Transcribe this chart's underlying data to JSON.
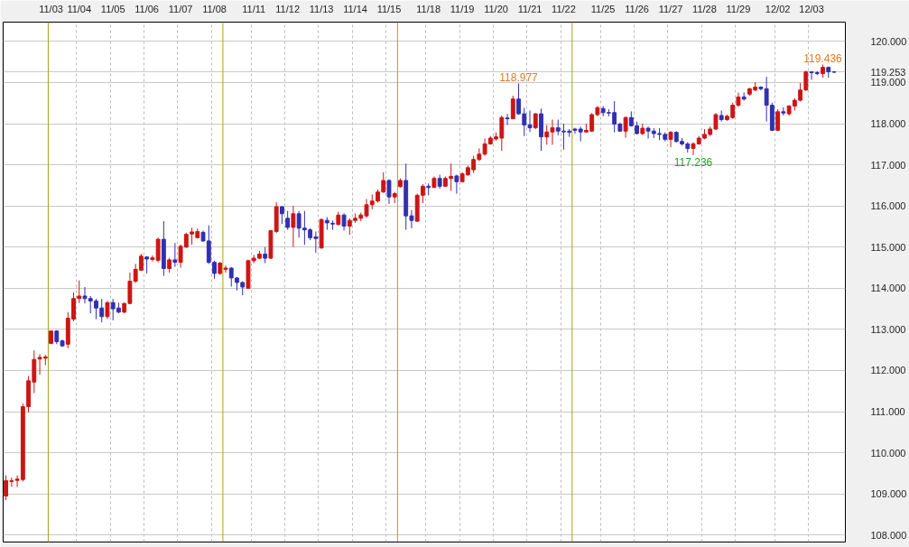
{
  "chart_data": {
    "type": "candlestick",
    "categories": [
      null,
      null,
      null,
      null,
      null,
      null,
      null,
      null,
      "11/03",
      null,
      null,
      null,
      null,
      "11/04",
      null,
      null,
      null,
      null,
      null,
      "11/05",
      null,
      null,
      null,
      null,
      null,
      "11/06",
      null,
      null,
      null,
      null,
      null,
      "11/07",
      null,
      null,
      null,
      null,
      null,
      "11/08",
      null,
      null,
      null,
      null,
      null,
      null,
      "11/11",
      null,
      null,
      null,
      null,
      null,
      "11/12",
      null,
      null,
      null,
      null,
      null,
      "11/13",
      null,
      null,
      null,
      null,
      null,
      "11/14",
      null,
      null,
      null,
      null,
      null,
      "11/15",
      null,
      null,
      null,
      null,
      null,
      null,
      "11/18",
      null,
      null,
      null,
      null,
      null,
      "11/19",
      null,
      null,
      null,
      null,
      null,
      "11/20",
      null,
      null,
      null,
      null,
      null,
      "11/21",
      null,
      null,
      null,
      null,
      null,
      "11/22",
      null,
      null,
      null,
      null,
      null,
      null,
      "11/25",
      null,
      null,
      null,
      null,
      null,
      "11/26",
      null,
      null,
      null,
      null,
      null,
      "11/27",
      null,
      null,
      null,
      null,
      null,
      "11/28",
      null,
      null,
      null,
      null,
      null,
      "11/29",
      null,
      null,
      null,
      null,
      null,
      null,
      "12/02",
      null,
      null,
      null,
      null,
      null,
      "12/03",
      null,
      null,
      null,
      null
    ],
    "ohlc": [
      [
        108.95,
        109.45,
        108.85,
        109.32
      ],
      [
        109.3,
        109.4,
        109.17,
        109.32
      ],
      [
        109.33,
        109.45,
        109.17,
        109.36
      ],
      [
        109.35,
        111.2,
        109.3,
        111.12
      ],
      [
        111.12,
        111.87,
        110.98,
        111.75
      ],
      [
        111.72,
        112.49,
        111.45,
        112.27
      ],
      [
        112.28,
        112.4,
        111.9,
        112.32
      ],
      [
        112.3,
        112.38,
        112.13,
        112.33
      ],
      [
        112.66,
        112.97,
        112.64,
        112.96
      ],
      [
        112.96,
        112.98,
        112.64,
        112.7
      ],
      [
        112.72,
        112.75,
        112.58,
        112.6
      ],
      [
        112.64,
        113.42,
        112.54,
        113.27
      ],
      [
        113.25,
        113.9,
        113.2,
        113.75
      ],
      [
        113.75,
        114.19,
        113.64,
        113.81
      ],
      [
        113.81,
        114.03,
        113.63,
        113.75
      ],
      [
        113.75,
        113.81,
        113.39,
        113.69
      ],
      [
        113.69,
        113.74,
        113.25,
        113.52
      ],
      [
        113.52,
        113.74,
        113.17,
        113.31
      ],
      [
        113.31,
        113.69,
        113.25,
        113.65
      ],
      [
        113.65,
        113.74,
        113.22,
        113.5
      ],
      [
        113.52,
        113.65,
        113.39,
        113.42
      ],
      [
        113.42,
        113.65,
        113.39,
        113.63
      ],
      [
        113.63,
        114.38,
        113.61,
        114.17
      ],
      [
        114.17,
        114.59,
        114.13,
        114.46
      ],
      [
        114.44,
        114.84,
        114.42,
        114.78
      ],
      [
        114.76,
        114.78,
        114.36,
        114.71
      ],
      [
        114.7,
        114.8,
        114.65,
        114.74
      ],
      [
        114.68,
        115.23,
        114.63,
        115.19
      ],
      [
        115.19,
        115.63,
        114.3,
        114.48
      ],
      [
        114.48,
        114.74,
        114.38,
        114.69
      ],
      [
        114.69,
        115.1,
        114.52,
        114.63
      ],
      [
        114.63,
        115.06,
        114.5,
        115.02
      ],
      [
        115.0,
        115.35,
        114.98,
        115.31
      ],
      [
        115.32,
        115.47,
        115.06,
        115.37
      ],
      [
        115.23,
        115.45,
        115.21,
        115.38
      ],
      [
        115.36,
        115.4,
        115.13,
        115.15
      ],
      [
        115.15,
        115.53,
        114.59,
        114.63
      ],
      [
        114.63,
        114.67,
        114.23,
        114.36
      ],
      [
        114.36,
        114.64,
        114.33,
        114.61
      ],
      [
        114.46,
        114.55,
        114.38,
        114.49
      ],
      [
        114.49,
        114.51,
        114.04,
        114.25
      ],
      [
        114.25,
        114.27,
        113.95,
        114.14
      ],
      [
        114.14,
        114.17,
        113.83,
        114.03
      ],
      [
        114.0,
        114.69,
        113.98,
        114.67
      ],
      [
        114.67,
        114.81,
        114.61,
        114.73
      ],
      [
        114.73,
        114.91,
        114.71,
        114.83
      ],
      [
        114.83,
        115.0,
        114.61,
        114.73
      ],
      [
        114.73,
        115.42,
        114.71,
        115.4
      ],
      [
        115.38,
        116.09,
        115.34,
        115.98
      ],
      [
        115.98,
        116.0,
        115.56,
        115.81
      ],
      [
        115.7,
        115.88,
        115.42,
        115.48
      ],
      [
        115.48,
        116.0,
        115.0,
        115.81
      ],
      [
        115.81,
        115.88,
        115.23,
        115.46
      ],
      [
        115.46,
        115.88,
        115.06,
        115.42
      ],
      [
        115.42,
        115.46,
        115.17,
        115.23
      ],
      [
        115.25,
        115.38,
        114.86,
        115.21
      ],
      [
        114.98,
        115.7,
        114.96,
        115.67
      ],
      [
        115.65,
        115.73,
        115.42,
        115.59
      ],
      [
        115.58,
        115.65,
        115.42,
        115.56
      ],
      [
        115.55,
        115.86,
        115.53,
        115.78
      ],
      [
        115.78,
        115.82,
        115.4,
        115.51
      ],
      [
        115.51,
        115.7,
        115.3,
        115.65
      ],
      [
        115.65,
        115.82,
        115.59,
        115.7
      ],
      [
        115.7,
        115.84,
        115.63,
        115.78
      ],
      [
        115.76,
        116.17,
        115.71,
        116.03
      ],
      [
        116.03,
        116.28,
        115.92,
        116.12
      ],
      [
        116.12,
        116.4,
        116.09,
        116.34
      ],
      [
        116.34,
        116.82,
        116.32,
        116.62
      ],
      [
        116.62,
        116.65,
        116.05,
        116.22
      ],
      [
        116.22,
        116.34,
        116.07,
        116.3
      ],
      [
        116.47,
        116.67,
        116.45,
        116.62
      ],
      [
        116.62,
        117.03,
        115.42,
        115.76
      ],
      [
        115.76,
        115.9,
        115.46,
        115.65
      ],
      [
        115.63,
        116.3,
        115.61,
        116.26
      ],
      [
        116.26,
        116.53,
        116.07,
        116.48
      ],
      [
        116.48,
        116.55,
        116.26,
        116.45
      ],
      [
        116.45,
        116.72,
        116.45,
        116.67
      ],
      [
        116.67,
        116.76,
        116.42,
        116.48
      ],
      [
        116.48,
        116.72,
        116.47,
        116.67
      ],
      [
        116.67,
        117.03,
        116.37,
        116.72
      ],
      [
        116.73,
        116.76,
        116.3,
        116.59
      ],
      [
        116.59,
        116.82,
        116.57,
        116.78
      ],
      [
        116.76,
        116.98,
        116.73,
        116.93
      ],
      [
        116.88,
        117.22,
        116.8,
        117.13
      ],
      [
        117.13,
        117.4,
        117.09,
        117.26
      ],
      [
        117.26,
        117.64,
        117.22,
        117.51
      ],
      [
        117.51,
        117.7,
        117.49,
        117.65
      ],
      [
        117.63,
        117.79,
        117.59,
        117.68
      ],
      [
        117.65,
        118.2,
        117.34,
        118.15
      ],
      [
        118.14,
        118.24,
        117.97,
        118.12
      ],
      [
        118.12,
        118.68,
        118.12,
        118.6
      ],
      [
        118.6,
        118.977,
        118.22,
        118.24
      ],
      [
        118.24,
        118.39,
        117.7,
        117.97
      ],
      [
        117.97,
        118.32,
        117.8,
        117.9
      ],
      [
        117.9,
        118.26,
        117.87,
        118.24
      ],
      [
        118.24,
        118.37,
        117.34,
        117.68
      ],
      [
        117.68,
        117.97,
        117.49,
        117.8
      ],
      [
        117.8,
        118.1,
        117.49,
        117.9
      ],
      [
        117.9,
        118.1,
        117.72,
        117.82
      ],
      [
        117.82,
        118.0,
        117.37,
        117.8
      ],
      [
        117.82,
        117.87,
        117.68,
        117.79
      ],
      [
        117.87,
        117.9,
        117.76,
        117.84
      ],
      [
        117.87,
        117.93,
        117.57,
        117.8
      ],
      [
        117.8,
        118.0,
        117.78,
        117.84
      ],
      [
        117.82,
        118.26,
        117.8,
        118.22
      ],
      [
        118.22,
        118.43,
        118.18,
        118.39
      ],
      [
        118.37,
        118.43,
        118.18,
        118.27
      ],
      [
        118.27,
        118.35,
        118.18,
        118.26
      ],
      [
        118.27,
        118.55,
        117.79,
        117.99
      ],
      [
        117.99,
        118.03,
        117.8,
        117.82
      ],
      [
        117.82,
        118.18,
        117.66,
        118.15
      ],
      [
        118.15,
        118.3,
        117.93,
        117.95
      ],
      [
        117.95,
        118.05,
        117.74,
        117.76
      ],
      [
        117.76,
        118.0,
        117.72,
        117.89
      ],
      [
        117.89,
        117.93,
        117.64,
        117.82
      ],
      [
        117.82,
        117.89,
        117.65,
        117.76
      ],
      [
        117.76,
        117.89,
        117.6,
        117.74
      ],
      [
        117.74,
        117.79,
        117.57,
        117.62
      ],
      [
        117.62,
        117.82,
        117.43,
        117.79
      ],
      [
        117.79,
        117.82,
        117.54,
        117.57
      ],
      [
        117.57,
        117.65,
        117.47,
        117.51
      ],
      [
        117.51,
        117.55,
        117.3,
        117.4
      ],
      [
        117.4,
        117.55,
        117.236,
        117.51
      ],
      [
        117.51,
        117.7,
        117.49,
        117.65
      ],
      [
        117.65,
        117.87,
        117.62,
        117.74
      ],
      [
        117.74,
        117.93,
        117.7,
        117.87
      ],
      [
        117.87,
        118.26,
        117.85,
        118.22
      ],
      [
        118.2,
        118.32,
        118.05,
        118.1
      ],
      [
        118.1,
        118.22,
        118.07,
        118.18
      ],
      [
        118.15,
        118.51,
        118.12,
        118.45
      ],
      [
        118.45,
        118.76,
        118.41,
        118.65
      ],
      [
        118.65,
        118.76,
        118.56,
        118.6
      ],
      [
        118.72,
        118.87,
        118.68,
        118.85
      ],
      [
        118.82,
        119.01,
        118.79,
        118.89
      ],
      [
        118.89,
        118.91,
        118.81,
        118.85
      ],
      [
        118.85,
        119.14,
        118.05,
        118.45
      ],
      [
        118.45,
        118.51,
        117.82,
        117.84
      ],
      [
        117.84,
        118.35,
        117.82,
        118.29
      ],
      [
        118.29,
        118.4,
        118.2,
        118.26
      ],
      [
        118.24,
        118.45,
        118.2,
        118.43
      ],
      [
        118.43,
        118.62,
        118.32,
        118.57
      ],
      [
        118.57,
        118.99,
        118.54,
        118.82
      ],
      [
        118.82,
        119.29,
        118.8,
        119.26
      ],
      [
        119.26,
        119.28,
        119.07,
        119.24
      ],
      [
        119.24,
        119.28,
        119.18,
        119.22
      ],
      [
        119.22,
        119.436,
        119.12,
        119.37
      ],
      [
        119.37,
        119.39,
        119.12,
        119.26
      ],
      [
        119.26,
        119.28,
        119.24,
        119.253
      ]
    ],
    "colors": [
      "#cc1515",
      "#cc1515",
      "#cc1515",
      "#cc1515",
      "#cc1515",
      "#cc1515",
      "#cc1515",
      "#cc1515",
      "#cc1515",
      "#3030b0",
      "#3030b0",
      "#cc1515",
      "#cc1515",
      "#cc1515",
      "#3030b0",
      "#3030b0",
      "#3030b0",
      "#3030b0",
      "#cc1515",
      "#3030b0",
      "#3030b0",
      "#cc1515",
      "#cc1515",
      "#cc1515",
      "#cc1515",
      "#3030b0",
      "#cc1515",
      "#cc1515",
      "#3030b0",
      "#cc1515",
      "#3030b0",
      "#cc1515",
      "#cc1515",
      "#cc1515",
      "#cc1515",
      "#3030b0",
      "#3030b0",
      "#3030b0",
      "#cc1515",
      "#cc1515",
      "#3030b0",
      "#3030b0",
      "#3030b0",
      "#cc1515",
      "#cc1515",
      "#cc1515",
      "#3030b0",
      "#cc1515",
      "#cc1515",
      "#3030b0",
      "#3030b0",
      "#cc1515",
      "#3030b0",
      "#3030b0",
      "#3030b0",
      "#3030b0",
      "#cc1515",
      "#3030b0",
      "#3030b0",
      "#cc1515",
      "#3030b0",
      "#cc1515",
      "#cc1515",
      "#cc1515",
      "#cc1515",
      "#cc1515",
      "#cc1515",
      "#cc1515",
      "#3030b0",
      "#cc1515",
      "#cc1515",
      "#3030b0",
      "#3030b0",
      "#cc1515",
      "#cc1515",
      "#3030b0",
      "#cc1515",
      "#3030b0",
      "#cc1515",
      "#cc1515",
      "#3030b0",
      "#cc1515",
      "#cc1515",
      "#cc1515",
      "#cc1515",
      "#cc1515",
      "#cc1515",
      "#cc1515",
      "#cc1515",
      "#3030b0",
      "#cc1515",
      "#3030b0",
      "#3030b0",
      "#3030b0",
      "#cc1515",
      "#3030b0",
      "#cc1515",
      "#cc1515",
      "#3030b0",
      "#3030b0",
      "#3030b0",
      "#3030b0",
      "#3030b0",
      "#cc1515",
      "#cc1515",
      "#cc1515",
      "#3030b0",
      "#3030b0",
      "#3030b0",
      "#3030b0",
      "#cc1515",
      "#3030b0",
      "#3030b0",
      "#cc1515",
      "#3030b0",
      "#3030b0",
      "#3030b0",
      "#3030b0",
      "#cc1515",
      "#3030b0",
      "#3030b0",
      "#3030b0",
      "#cc1515",
      "#cc1515",
      "#cc1515",
      "#cc1515",
      "#cc1515",
      "#3030b0",
      "#cc1515",
      "#cc1515",
      "#cc1515",
      "#3030b0",
      "#cc1515",
      "#cc1515",
      "#3030b0",
      "#3030b0",
      "#3030b0",
      "#cc1515",
      "#3030b0",
      "#cc1515",
      "#cc1515",
      "#cc1515",
      "#cc1515",
      "#3030b0",
      "#3030b0",
      "#cc1515",
      "#3030b0",
      "#3030b0"
    ],
    "ylim": [
      107.83,
      120.47
    ],
    "yticks": [
      {
        "value": 108,
        "label": "108.000"
      },
      {
        "value": 109,
        "label": "109.000"
      },
      {
        "value": 110,
        "label": "110.000"
      },
      {
        "value": 111,
        "label": "111.000"
      },
      {
        "value": 112,
        "label": "112.000"
      },
      {
        "value": 113,
        "label": "113.000"
      },
      {
        "value": 114,
        "label": "114.000"
      },
      {
        "value": 115,
        "label": "115.000"
      },
      {
        "value": 116,
        "label": "116.000"
      },
      {
        "value": 117,
        "label": "117.000"
      },
      {
        "value": 118,
        "label": "118.000"
      },
      {
        "value": 119,
        "label": "119.000"
      },
      {
        "value": 119.253,
        "label": "119.253"
      },
      {
        "value": 120,
        "label": "120.000"
      }
    ],
    "grid": true,
    "annotations": [
      {
        "text": "118.977",
        "y": 118.977
      },
      {
        "text": "117.236",
        "y": 117.236
      },
      {
        "text": "119.436",
        "y": 119.436
      }
    ]
  }
}
